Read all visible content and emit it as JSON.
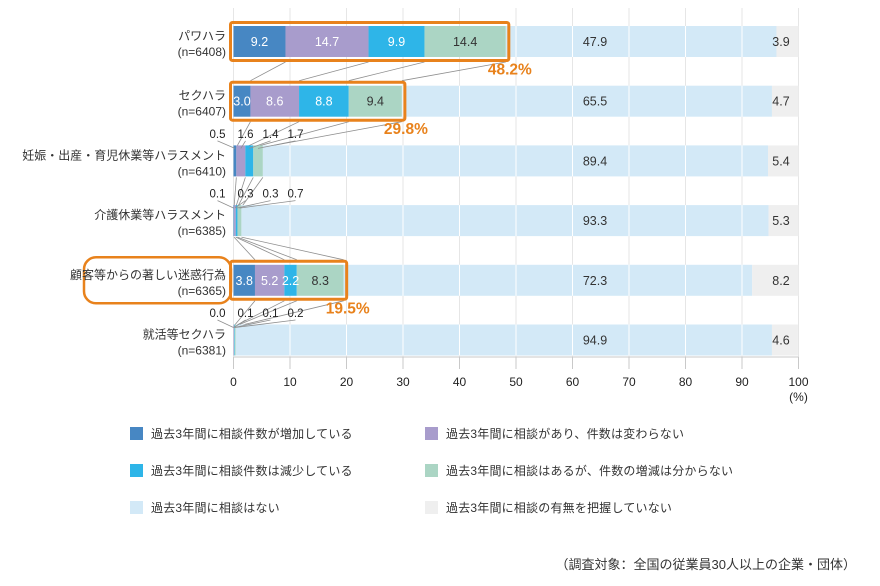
{
  "footnote": "（調査対象：全国の従業員30人以上の企業・団体）",
  "colors": {
    "increase": "#4787c3",
    "no_change": "#a89ccc",
    "decrease": "#2eb5e8",
    "unknown_change": "#abd5c4",
    "no_consult": "#d3e9f7",
    "not_grasped": "#efefef",
    "highlight_orange": "#e8821c",
    "connector_gray": "#8f8f8f",
    "grid_gray": "#e6e6e6",
    "axis_gray": "#c9c9c9",
    "text_dark": "#333333"
  },
  "legend": {
    "items": [
      {
        "label": "過去3年間に相談件数が増加している",
        "color": "#4787c3"
      },
      {
        "label": "過去3年間に相談件数は減少している",
        "color": "#2eb5e8"
      },
      {
        "label": "過去3年間に相談はない",
        "color": "#d3e9f7"
      },
      {
        "label": "過去3年間に相談があり、件数は変わらない",
        "color": "#a89ccc"
      },
      {
        "label": "過去3年間に相談はあるが、件数の増減は分からない",
        "color": "#abd5c4"
      },
      {
        "label": "過去3年間に相談の有無を把握していない",
        "color": "#efefef"
      }
    ]
  },
  "chart_data": {
    "type": "bar",
    "orientation": "horizontal",
    "stacked": true,
    "xlim": [
      0,
      100
    ],
    "x_ticks": [
      0,
      10,
      20,
      30,
      40,
      50,
      60,
      70,
      80,
      90,
      100
    ],
    "unit_label": "(%)",
    "grid": true,
    "series_names": [
      "過去3年間に相談件数が増加している",
      "過去3年間に相談があり、件数は変わらない",
      "過去3年間に相談件数は減少している",
      "過去3年間に相談はあるが、件数の増減は分からない",
      "過去3年間に相談はない",
      "過去3年間に相談の有無を把握していない"
    ],
    "series_colors": [
      "#4787c3",
      "#a89ccc",
      "#2eb5e8",
      "#abd5c4",
      "#d3e9f7",
      "#efefef"
    ],
    "label_on_dark": [
      "#ffffff",
      "#ffffff",
      "#ffffff",
      "#333333",
      "#333333",
      "#333333"
    ],
    "categories": [
      {
        "label": "パワハラ",
        "n_label": "(n=6408)",
        "values": [
          9.2,
          14.7,
          9.9,
          14.4,
          47.9,
          3.9
        ],
        "callout_pct": "48.2%",
        "boxed_bar": true,
        "boxed_label": false,
        "tiny_labels": false
      },
      {
        "label": "セクハラ",
        "n_label": "(n=6407)",
        "values": [
          3.0,
          8.6,
          8.8,
          9.4,
          65.5,
          4.7
        ],
        "callout_pct": "29.8%",
        "boxed_bar": true,
        "boxed_label": false,
        "tiny_labels": false
      },
      {
        "label": "妊娠・出産・育児休業等ハラスメント",
        "n_label": "(n=6410)",
        "values": [
          0.5,
          1.6,
          1.4,
          1.7,
          89.4,
          5.4
        ],
        "callout_pct": null,
        "boxed_bar": false,
        "boxed_label": false,
        "tiny_labels": true
      },
      {
        "label": "介護休業等ハラスメント",
        "n_label": "(n=6385)",
        "values": [
          0.1,
          0.3,
          0.3,
          0.7,
          93.3,
          5.3
        ],
        "callout_pct": null,
        "boxed_bar": false,
        "boxed_label": false,
        "tiny_labels": true
      },
      {
        "label": "顧客等からの著しい迷惑行為",
        "n_label": "(n=6365)",
        "values": [
          3.8,
          5.2,
          2.2,
          8.3,
          72.3,
          8.2
        ],
        "callout_pct": "19.5%",
        "boxed_bar": true,
        "boxed_label": true,
        "tiny_labels": false
      },
      {
        "label": "就活等セクハラ",
        "n_label": "(n=6381)",
        "values": [
          0.0,
          0.1,
          0.1,
          0.2,
          94.9,
          4.6
        ],
        "callout_pct": null,
        "boxed_bar": false,
        "boxed_label": false,
        "tiny_labels": true
      }
    ]
  }
}
